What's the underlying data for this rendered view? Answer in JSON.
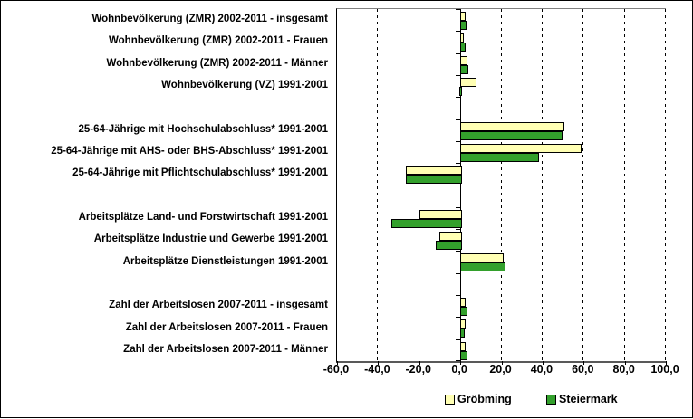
{
  "chart_data": {
    "type": "bar",
    "orientation": "horizontal",
    "title": "",
    "xlabel": "",
    "ylabel": "",
    "xlim": [
      -60,
      100
    ],
    "x_ticks": [
      -60,
      -40,
      -20,
      0,
      20,
      40,
      60,
      80,
      100
    ],
    "x_tick_labels": [
      "-60,0",
      "-40,0",
      "-20,0",
      "0,0",
      "20,0",
      "40,0",
      "60,0",
      "80,0",
      "100,0"
    ],
    "grid": "vertical-dashed",
    "legend_position": "bottom",
    "categories": [
      "Wohnbevölkerung (ZMR) 2002-2011 - insgesamt",
      "Wohnbevölkerung (ZMR) 2002-2011 - Frauen",
      "Wohnbevölkerung (ZMR) 2002-2011 - Männer",
      "Wohnbevölkerung (VZ) 1991-2001",
      "25-64-Jährige mit Hochschulabschluss* 1991-2001",
      "25-64-Jährige mit AHS- oder BHS-Abschluss* 1991-2001",
      "25-64-Jährige mit Pflichtschulabschluss* 1991-2001",
      "Arbeitsplätze Land- und Forstwirtschaft 1991-2001",
      "Arbeitsplätze Industrie und Gewerbe 1991-2001",
      "Arbeitsplätze Dienstleistungen 1991-2001",
      "Zahl der Arbeitslosen 2007-2011 - insgesamt",
      "Zahl der Arbeitslosen 2007-2011 - Frauen",
      "Zahl der Arbeitslosen 2007-2011 - Männer"
    ],
    "group_sizes": [
      4,
      3,
      3,
      3
    ],
    "series": [
      {
        "name": "Gröbming",
        "color": "#FFFFB3",
        "values": [
          1.5,
          0.8,
          2.6,
          7.0,
          49.7,
          58.3,
          -26.3,
          -20.1,
          -10.4,
          20.0,
          1.8,
          1.8,
          1.8
        ]
      },
      {
        "name": "Steiermark",
        "color": "#33A02C",
        "values": [
          2.3,
          1.8,
          3.1,
          -0.5,
          48.8,
          37.2,
          -26.3,
          -33.4,
          -11.8,
          20.9,
          2.4,
          1.3,
          2.6
        ]
      }
    ]
  }
}
